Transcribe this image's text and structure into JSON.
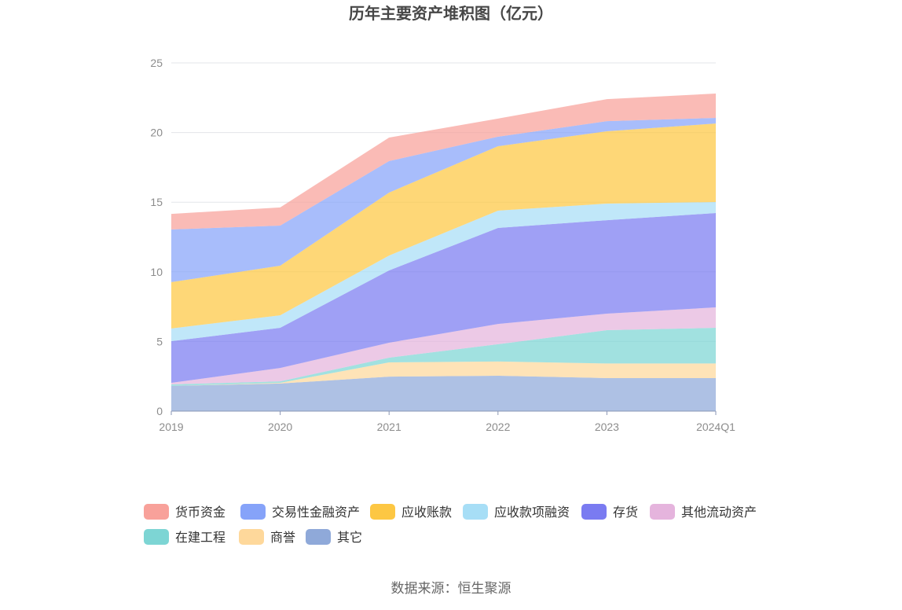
{
  "source": "数据来源：恒生聚源",
  "chart_data": {
    "type": "area",
    "stacked": true,
    "title": "历年主要资产堆积图（亿元）",
    "xlabel": "",
    "ylabel": "",
    "categories": [
      "2019",
      "2020",
      "2021",
      "2022",
      "2023",
      "2024Q1"
    ],
    "ylim": [
      0,
      25
    ],
    "yticks": [
      0,
      5,
      10,
      15,
      20,
      25
    ],
    "grid": true,
    "legend_position": "bottom",
    "series": [
      {
        "name": "货币资金",
        "color": "#f8a19a",
        "values": [
          1.12,
          1.3,
          1.69,
          1.3,
          1.58,
          1.75
        ]
      },
      {
        "name": "交易性金融资产",
        "color": "#86a3f9",
        "values": [
          3.78,
          2.88,
          2.26,
          0.68,
          0.73,
          0.4
        ]
      },
      {
        "name": "应收账款",
        "color": "#fdc743",
        "values": [
          3.33,
          3.56,
          4.52,
          4.63,
          5.19,
          5.64
        ]
      },
      {
        "name": "应收款项融资",
        "color": "#a7def6",
        "values": [
          0.91,
          0.9,
          1.07,
          1.24,
          1.19,
          0.79
        ]
      },
      {
        "name": "存货",
        "color": "#7a7bf1",
        "values": [
          2.99,
          2.88,
          5.19,
          6.89,
          6.71,
          6.77
        ]
      },
      {
        "name": "其他流动资产",
        "color": "#e5b4dd",
        "values": [
          0.11,
          0.96,
          1.07,
          1.46,
          1.19,
          1.47
        ]
      },
      {
        "name": "在建工程",
        "color": "#7dd5d4",
        "values": [
          0.11,
          0.11,
          0.34,
          1.24,
          2.39,
          2.56
        ]
      },
      {
        "name": "商誉",
        "color": "#fed89b",
        "values": [
          0.0,
          0.05,
          1.02,
          1.02,
          1.05,
          1.05
        ]
      },
      {
        "name": "其它",
        "color": "#8fa9d9",
        "values": [
          1.81,
          1.98,
          2.48,
          2.54,
          2.37,
          2.37
        ]
      }
    ]
  }
}
